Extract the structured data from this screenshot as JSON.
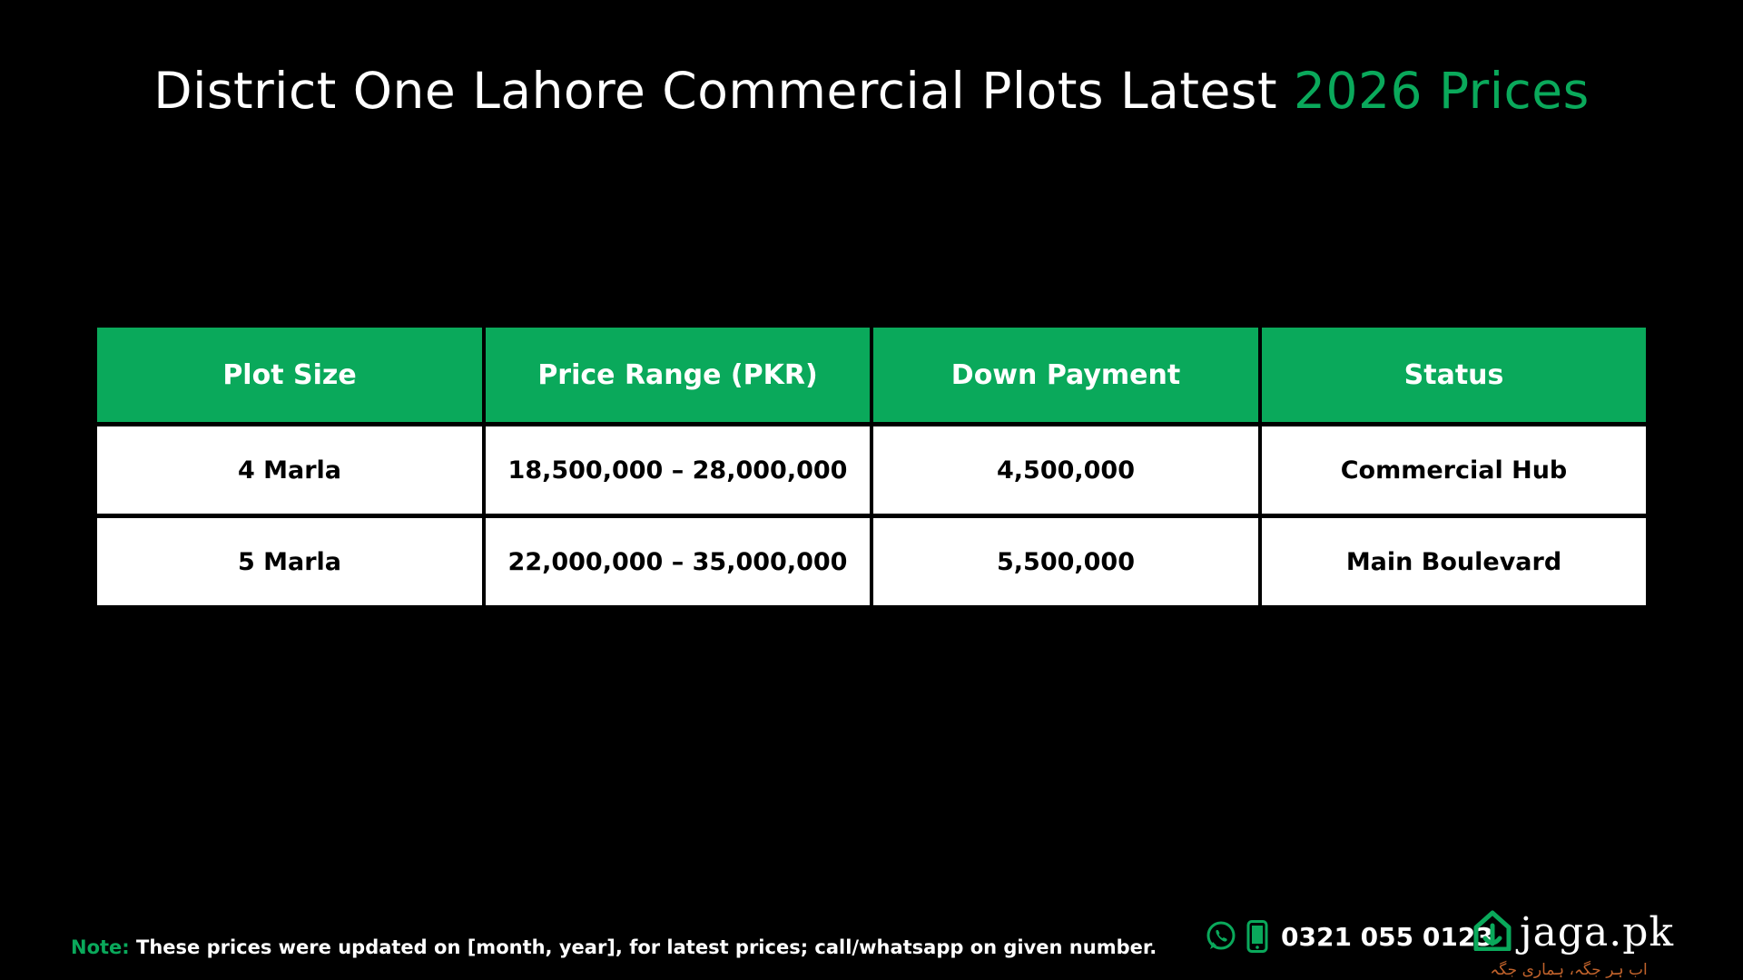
{
  "title": {
    "main": "District One Lahore Commercial Plots Latest ",
    "accent": "2026 Prices"
  },
  "table": {
    "headers": [
      "Plot Size",
      "Price Range (PKR)",
      "Down Payment",
      "Status"
    ],
    "rows": [
      [
        "4 Marla",
        "18,500,000 – 28,000,000",
        "4,500,000",
        "Commercial Hub"
      ],
      [
        "5 Marla",
        "22,000,000 – 35,000,000",
        "5,500,000",
        "Main Boulevard"
      ]
    ]
  },
  "note": {
    "label": "Note:",
    "text": " These prices were updated on [month, year], for latest prices; call/whatsapp on given number."
  },
  "contact": {
    "phone": "0321 055 0123",
    "icons": [
      "whatsapp-icon",
      "mobile-phone-icon"
    ]
  },
  "brand": {
    "name": "jaga.pk",
    "tagline": "اب ہر جگہ، ہماری جگہ",
    "logo_icon": "house-logo-icon"
  },
  "colors": {
    "accent": "#0aa95b",
    "background": "#000000",
    "cell_background": "#ffffff",
    "tagline": "#c0622b"
  }
}
